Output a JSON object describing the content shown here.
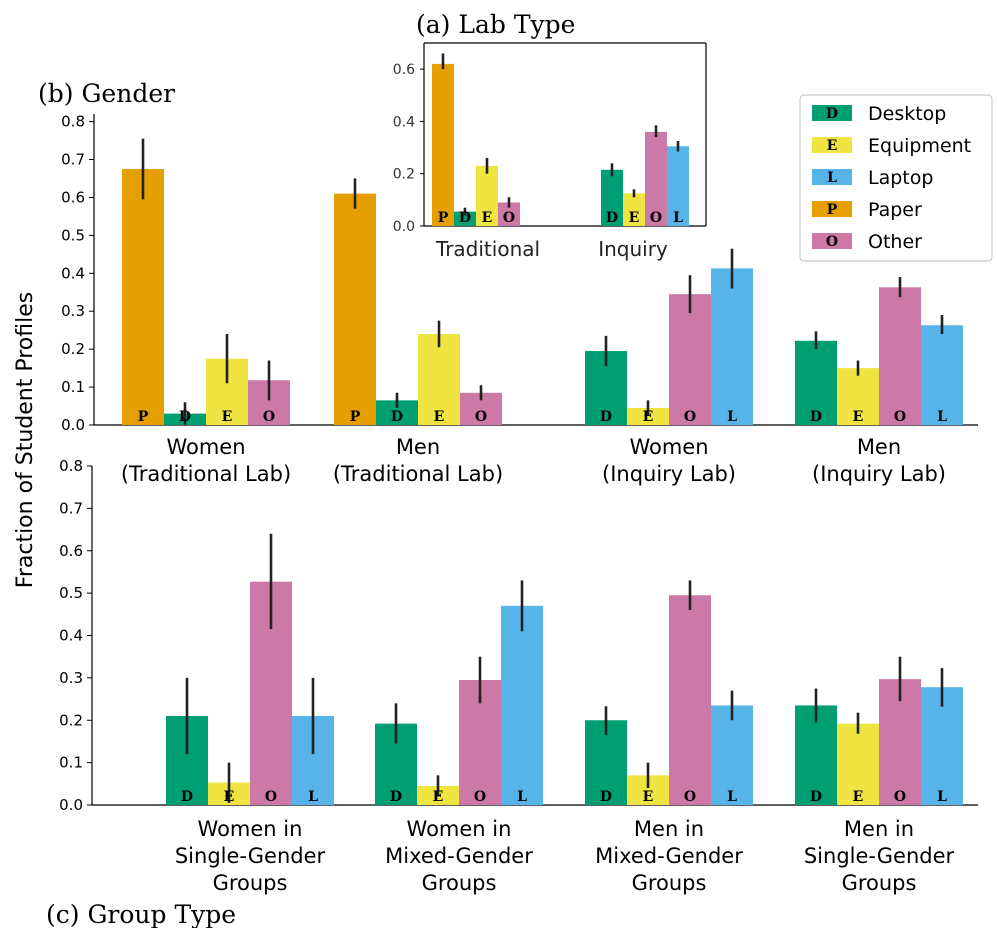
{
  "colors": {
    "Desktop": "#009e73",
    "Equipment": "#f0e442",
    "Laptop": "#56b4e9",
    "Paper": "#e69f00",
    "Other": "#cc79a7"
  },
  "legend": {
    "placement": "upper-right",
    "items": [
      {
        "key": "Desktop",
        "letter": "D",
        "label": "Desktop"
      },
      {
        "key": "Equipment",
        "letter": "E",
        "label": "Equipment"
      },
      {
        "key": "Laptop",
        "letter": "L",
        "label": "Laptop"
      },
      {
        "key": "Paper",
        "letter": "P",
        "label": "Paper"
      },
      {
        "key": "Other",
        "letter": "O",
        "label": "Other"
      }
    ]
  },
  "y_axis_label": "Fraction of Student Profiles",
  "chart_data": [
    {
      "id": "a",
      "type": "bar",
      "title": "(a) Lab Type",
      "ylim": [
        0,
        0.7
      ],
      "yticks": [
        "0.0",
        "0.2",
        "0.4",
        "0.6"
      ],
      "ytick_values": [
        0,
        0.2,
        0.4,
        0.6
      ],
      "groups": [
        {
          "label": "Traditional",
          "bars": [
            {
              "key": "Paper",
              "letter": "P",
              "value": 0.62,
              "err": [
                0.6,
                0.66
              ]
            },
            {
              "key": "Desktop",
              "letter": "D",
              "value": 0.055,
              "err": [
                0.04,
                0.07
              ]
            },
            {
              "key": "Equipment",
              "letter": "E",
              "value": 0.23,
              "err": [
                0.2,
                0.26
              ]
            },
            {
              "key": "Other",
              "letter": "O",
              "value": 0.09,
              "err": [
                0.07,
                0.11
              ]
            }
          ]
        },
        {
          "label": "Inquiry",
          "bars": [
            {
              "key": "Desktop",
              "letter": "D",
              "value": 0.215,
              "err": [
                0.19,
                0.24
              ]
            },
            {
              "key": "Equipment",
              "letter": "E",
              "value": 0.125,
              "err": [
                0.11,
                0.14
              ]
            },
            {
              "key": "Other",
              "letter": "O",
              "value": 0.36,
              "err": [
                0.34,
                0.385
              ]
            },
            {
              "key": "Laptop",
              "letter": "L",
              "value": 0.305,
              "err": [
                0.285,
                0.325
              ]
            }
          ]
        }
      ]
    },
    {
      "id": "b",
      "type": "bar",
      "title": "(b) Gender",
      "ylim": [
        0,
        0.82
      ],
      "yticks": [
        "0.0",
        "0.1",
        "0.2",
        "0.3",
        "0.4",
        "0.5",
        "0.6",
        "0.7",
        "0.8"
      ],
      "ytick_values": [
        0,
        0.1,
        0.2,
        0.3,
        0.4,
        0.5,
        0.6,
        0.7,
        0.8
      ],
      "groups": [
        {
          "label": [
            "Women",
            "(Traditional Lab)"
          ],
          "bars": [
            {
              "key": "Paper",
              "letter": "P",
              "value": 0.675,
              "err": [
                0.595,
                0.755
              ]
            },
            {
              "key": "Desktop",
              "letter": "D",
              "value": 0.03,
              "err": [
                0.0,
                0.06
              ]
            },
            {
              "key": "Equipment",
              "letter": "E",
              "value": 0.175,
              "err": [
                0.11,
                0.24
              ]
            },
            {
              "key": "Other",
              "letter": "O",
              "value": 0.118,
              "err": [
                0.065,
                0.17
              ]
            }
          ]
        },
        {
          "label": [
            "Men",
            "(Traditional Lab)"
          ],
          "bars": [
            {
              "key": "Paper",
              "letter": "P",
              "value": 0.61,
              "err": [
                0.57,
                0.65
              ]
            },
            {
              "key": "Desktop",
              "letter": "D",
              "value": 0.065,
              "err": [
                0.045,
                0.085
              ]
            },
            {
              "key": "Equipment",
              "letter": "E",
              "value": 0.24,
              "err": [
                0.205,
                0.275
              ]
            },
            {
              "key": "Other",
              "letter": "O",
              "value": 0.085,
              "err": [
                0.065,
                0.105
              ]
            }
          ]
        },
        {
          "label": [
            "Women",
            "(Inquiry Lab)"
          ],
          "bars": [
            {
              "key": "Desktop",
              "letter": "D",
              "value": 0.195,
              "err": [
                0.155,
                0.235
              ]
            },
            {
              "key": "Equipment",
              "letter": "E",
              "value": 0.045,
              "err": [
                0.025,
                0.065
              ]
            },
            {
              "key": "Other",
              "letter": "O",
              "value": 0.345,
              "err": [
                0.295,
                0.395
              ]
            },
            {
              "key": "Laptop",
              "letter": "L",
              "value": 0.413,
              "err": [
                0.36,
                0.465
              ]
            }
          ]
        },
        {
          "label": [
            "Men",
            "(Inquiry Lab)"
          ],
          "bars": [
            {
              "key": "Desktop",
              "letter": "D",
              "value": 0.222,
              "err": [
                0.2,
                0.247
              ]
            },
            {
              "key": "Equipment",
              "letter": "E",
              "value": 0.15,
              "err": [
                0.13,
                0.17
              ]
            },
            {
              "key": "Other",
              "letter": "O",
              "value": 0.363,
              "err": [
                0.337,
                0.39
              ]
            },
            {
              "key": "Laptop",
              "letter": "L",
              "value": 0.263,
              "err": [
                0.24,
                0.29
              ]
            }
          ]
        }
      ]
    },
    {
      "id": "c",
      "type": "bar",
      "title": "(c) Group Type",
      "ylim": [
        0,
        0.8
      ],
      "yticks": [
        "0.0",
        "0.1",
        "0.2",
        "0.3",
        "0.4",
        "0.5",
        "0.6",
        "0.7",
        "0.8"
      ],
      "ytick_values": [
        0,
        0.1,
        0.2,
        0.3,
        0.4,
        0.5,
        0.6,
        0.7,
        0.8
      ],
      "groups": [
        {
          "label": [
            "Women in",
            "Single-Gender",
            "Groups"
          ],
          "bars": [
            {
              "key": "Desktop",
              "letter": "D",
              "value": 0.21,
              "err": [
                0.12,
                0.3
              ]
            },
            {
              "key": "Equipment",
              "letter": "E",
              "value": 0.053,
              "err": [
                0.005,
                0.1
              ]
            },
            {
              "key": "Other",
              "letter": "O",
              "value": 0.527,
              "err": [
                0.415,
                0.64
              ]
            },
            {
              "key": "Laptop",
              "letter": "L",
              "value": 0.21,
              "err": [
                0.12,
                0.3
              ]
            }
          ]
        },
        {
          "label": [
            "Women in",
            "Mixed-Gender",
            "Groups"
          ],
          "bars": [
            {
              "key": "Desktop",
              "letter": "D",
              "value": 0.192,
              "err": [
                0.145,
                0.24
              ]
            },
            {
              "key": "Equipment",
              "letter": "E",
              "value": 0.045,
              "err": [
                0.02,
                0.07
              ]
            },
            {
              "key": "Other",
              "letter": "O",
              "value": 0.295,
              "err": [
                0.24,
                0.35
              ]
            },
            {
              "key": "Laptop",
              "letter": "L",
              "value": 0.47,
              "err": [
                0.41,
                0.53
              ]
            }
          ]
        },
        {
          "label": [
            "Men in",
            "Mixed-Gender",
            "Groups"
          ],
          "bars": [
            {
              "key": "Desktop",
              "letter": "D",
              "value": 0.2,
              "err": [
                0.165,
                0.233
              ]
            },
            {
              "key": "Equipment",
              "letter": "E",
              "value": 0.07,
              "err": [
                0.04,
                0.1
              ]
            },
            {
              "key": "Other",
              "letter": "O",
              "value": 0.495,
              "err": [
                0.46,
                0.53
              ]
            },
            {
              "key": "Laptop",
              "letter": "L",
              "value": 0.235,
              "err": [
                0.2,
                0.27
              ]
            }
          ]
        },
        {
          "label": [
            "Men in",
            "Single-Gender",
            "Groups"
          ],
          "bars": [
            {
              "key": "Desktop",
              "letter": "D",
              "value": 0.235,
              "err": [
                0.195,
                0.275
              ]
            },
            {
              "key": "Equipment",
              "letter": "E",
              "value": 0.192,
              "err": [
                0.168,
                0.218
              ]
            },
            {
              "key": "Other",
              "letter": "O",
              "value": 0.297,
              "err": [
                0.245,
                0.35
              ]
            },
            {
              "key": "Laptop",
              "letter": "L",
              "value": 0.278,
              "err": [
                0.232,
                0.323
              ]
            }
          ]
        }
      ]
    }
  ]
}
